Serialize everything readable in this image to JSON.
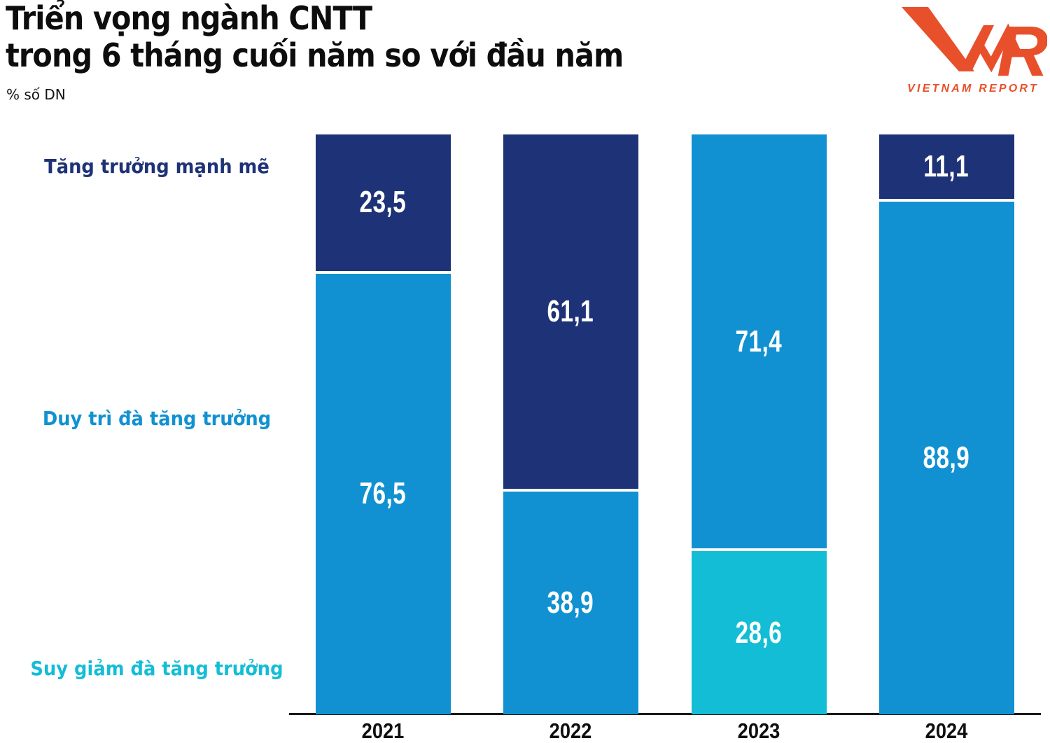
{
  "header": {
    "title_line1": "Triển vọng ngành CNTT",
    "title_line2": "trong 6 tháng cuối năm so với đầu năm",
    "subtitle": "% số DN"
  },
  "logo": {
    "brand": "VNR",
    "caption": "VIETNAM REPORT",
    "color": "#e8502b"
  },
  "chart_data": {
    "type": "bar",
    "stacked": true,
    "title": "Triển vọng ngành CNTT trong 6 tháng cuối năm so với đầu năm",
    "unit": "% số DN",
    "categories": [
      "2021",
      "2022",
      "2023",
      "2024"
    ],
    "series": [
      {
        "name": "Tăng trưởng mạnh mẽ",
        "color": "#1e3277",
        "values": [
          23.5,
          61.1,
          null,
          11.1
        ]
      },
      {
        "name": "Duy trì đà tăng trưởng",
        "color": "#1191d1",
        "values": [
          76.5,
          38.9,
          71.4,
          88.9
        ]
      },
      {
        "name": "Suy giảm đà tăng trưởng",
        "color": "#13bdd6",
        "values": [
          null,
          null,
          28.6,
          null
        ]
      }
    ],
    "ylim": [
      0,
      100
    ],
    "decimal_separator": ",",
    "grid": false,
    "legend_position": "left",
    "value_labels_shown": true
  }
}
